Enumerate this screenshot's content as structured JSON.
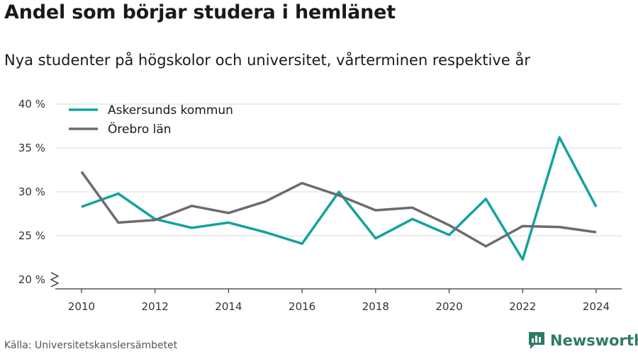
{
  "title": "Andel som börjar studera i hemlänet",
  "subtitle": "Nya studenter på högskolor och universitet, vårterminen respektive år",
  "source": "Källa: Universitetskanslersämbetet",
  "brand": {
    "name": "Newsworthy",
    "icon": "newsworthy-logo-icon",
    "color": "#2f7a66"
  },
  "chart_data": {
    "type": "line",
    "title": "Andel som börjar studera i hemlänet",
    "subtitle": "Nya studenter på högskolor och universitet, vårterminen respektive år",
    "xlabel": "",
    "ylabel": "",
    "x": [
      2010,
      2011,
      2012,
      2013,
      2014,
      2015,
      2016,
      2017,
      2018,
      2019,
      2020,
      2021,
      2022,
      2023,
      2024
    ],
    "x_ticks": [
      2010,
      2012,
      2014,
      2016,
      2018,
      2020,
      2022,
      2024
    ],
    "y_ticks": [
      20,
      25,
      30,
      35,
      40
    ],
    "y_tick_suffix": " %",
    "ylim": [
      20,
      40
    ],
    "y_axis_break": true,
    "grid": true,
    "legend_position": "top-left",
    "series": [
      {
        "name": "Askersunds kommun",
        "color": "#12a39c",
        "values": [
          28.3,
          29.8,
          26.9,
          25.9,
          26.5,
          25.4,
          24.1,
          30.0,
          24.7,
          26.9,
          25.1,
          29.2,
          22.3,
          36.2,
          28.3
        ]
      },
      {
        "name": "Örebro län",
        "color": "#6b6b70",
        "values": [
          32.3,
          26.5,
          26.8,
          28.4,
          27.6,
          28.9,
          31.0,
          29.6,
          27.9,
          28.2,
          26.2,
          23.8,
          26.1,
          26.0,
          25.4
        ]
      }
    ]
  }
}
